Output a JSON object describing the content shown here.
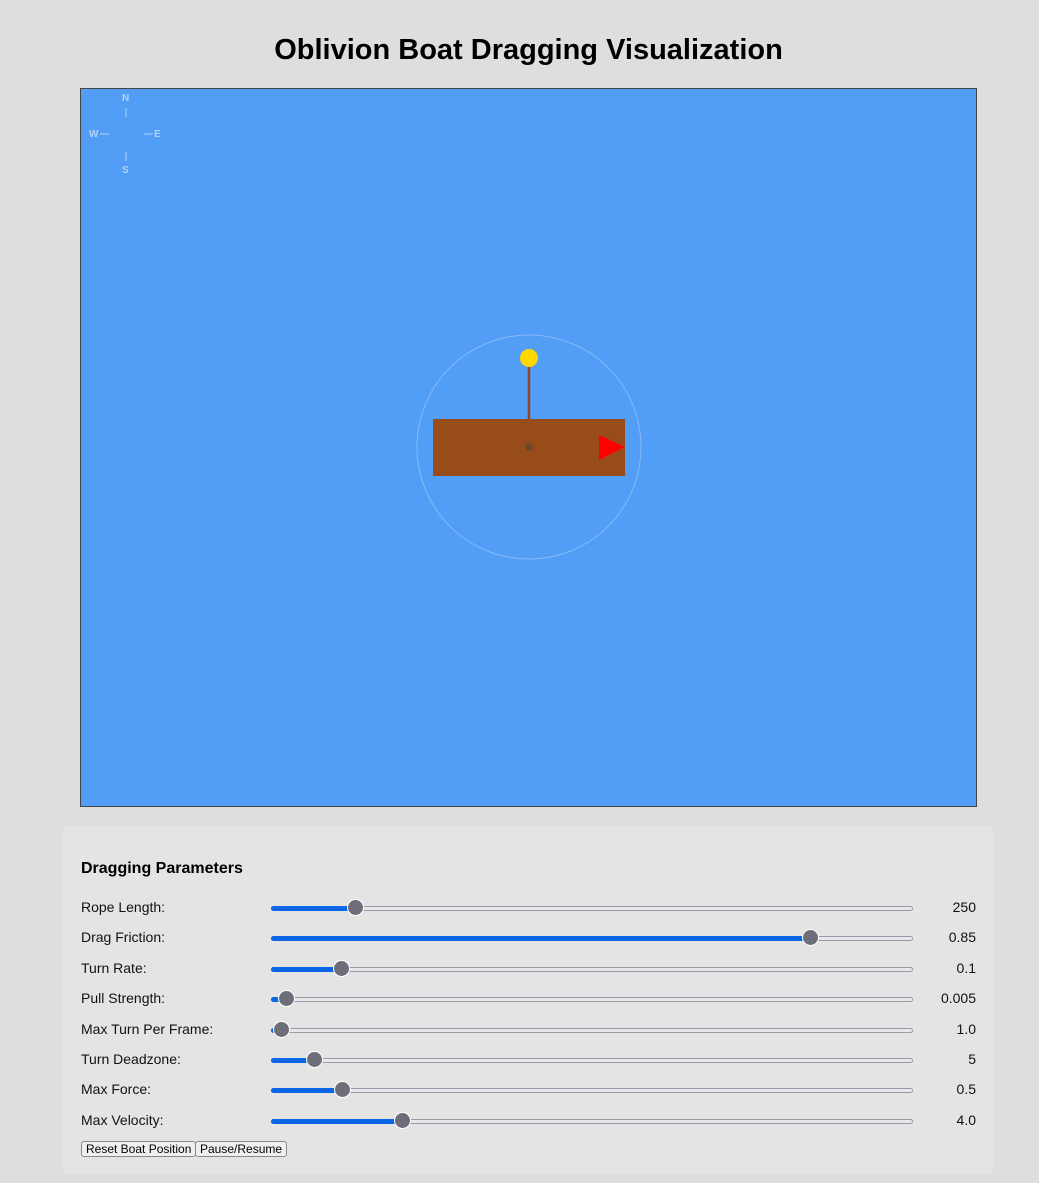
{
  "title": "Oblivion Boat Dragging Visualization",
  "compass": {
    "n": "N",
    "s": "S",
    "e": "E",
    "w": "W"
  },
  "colors": {
    "water": "#529df6",
    "boat": "#974c1a",
    "anchor": "#ffd700",
    "arrow": "#ff0000",
    "rope": "#8b4a2a",
    "slider_accent": "#0a66e4"
  },
  "panel": {
    "heading": "Dragging Parameters",
    "sliders": [
      {
        "label": "Rope Length:",
        "value": "250",
        "percent": 12
      },
      {
        "label": "Drag Friction:",
        "value": "0.85",
        "percent": 85.3
      },
      {
        "label": "Turn Rate:",
        "value": "0.1",
        "percent": 9.7
      },
      {
        "label": "Pull Strength:",
        "value": "0.005",
        "percent": 0.8
      },
      {
        "label": "Max Turn Per Frame:",
        "value": "1.0",
        "percent": 0
      },
      {
        "label": "Turn Deadzone:",
        "value": "5",
        "percent": 5.3
      },
      {
        "label": "Max Force:",
        "value": "0.5",
        "percent": 9.8
      },
      {
        "label": "Max Velocity:",
        "value": "4.0",
        "percent": 19.5
      }
    ],
    "buttons": {
      "reset": "Reset Boat Position",
      "pause": "Pause/Resume"
    }
  }
}
